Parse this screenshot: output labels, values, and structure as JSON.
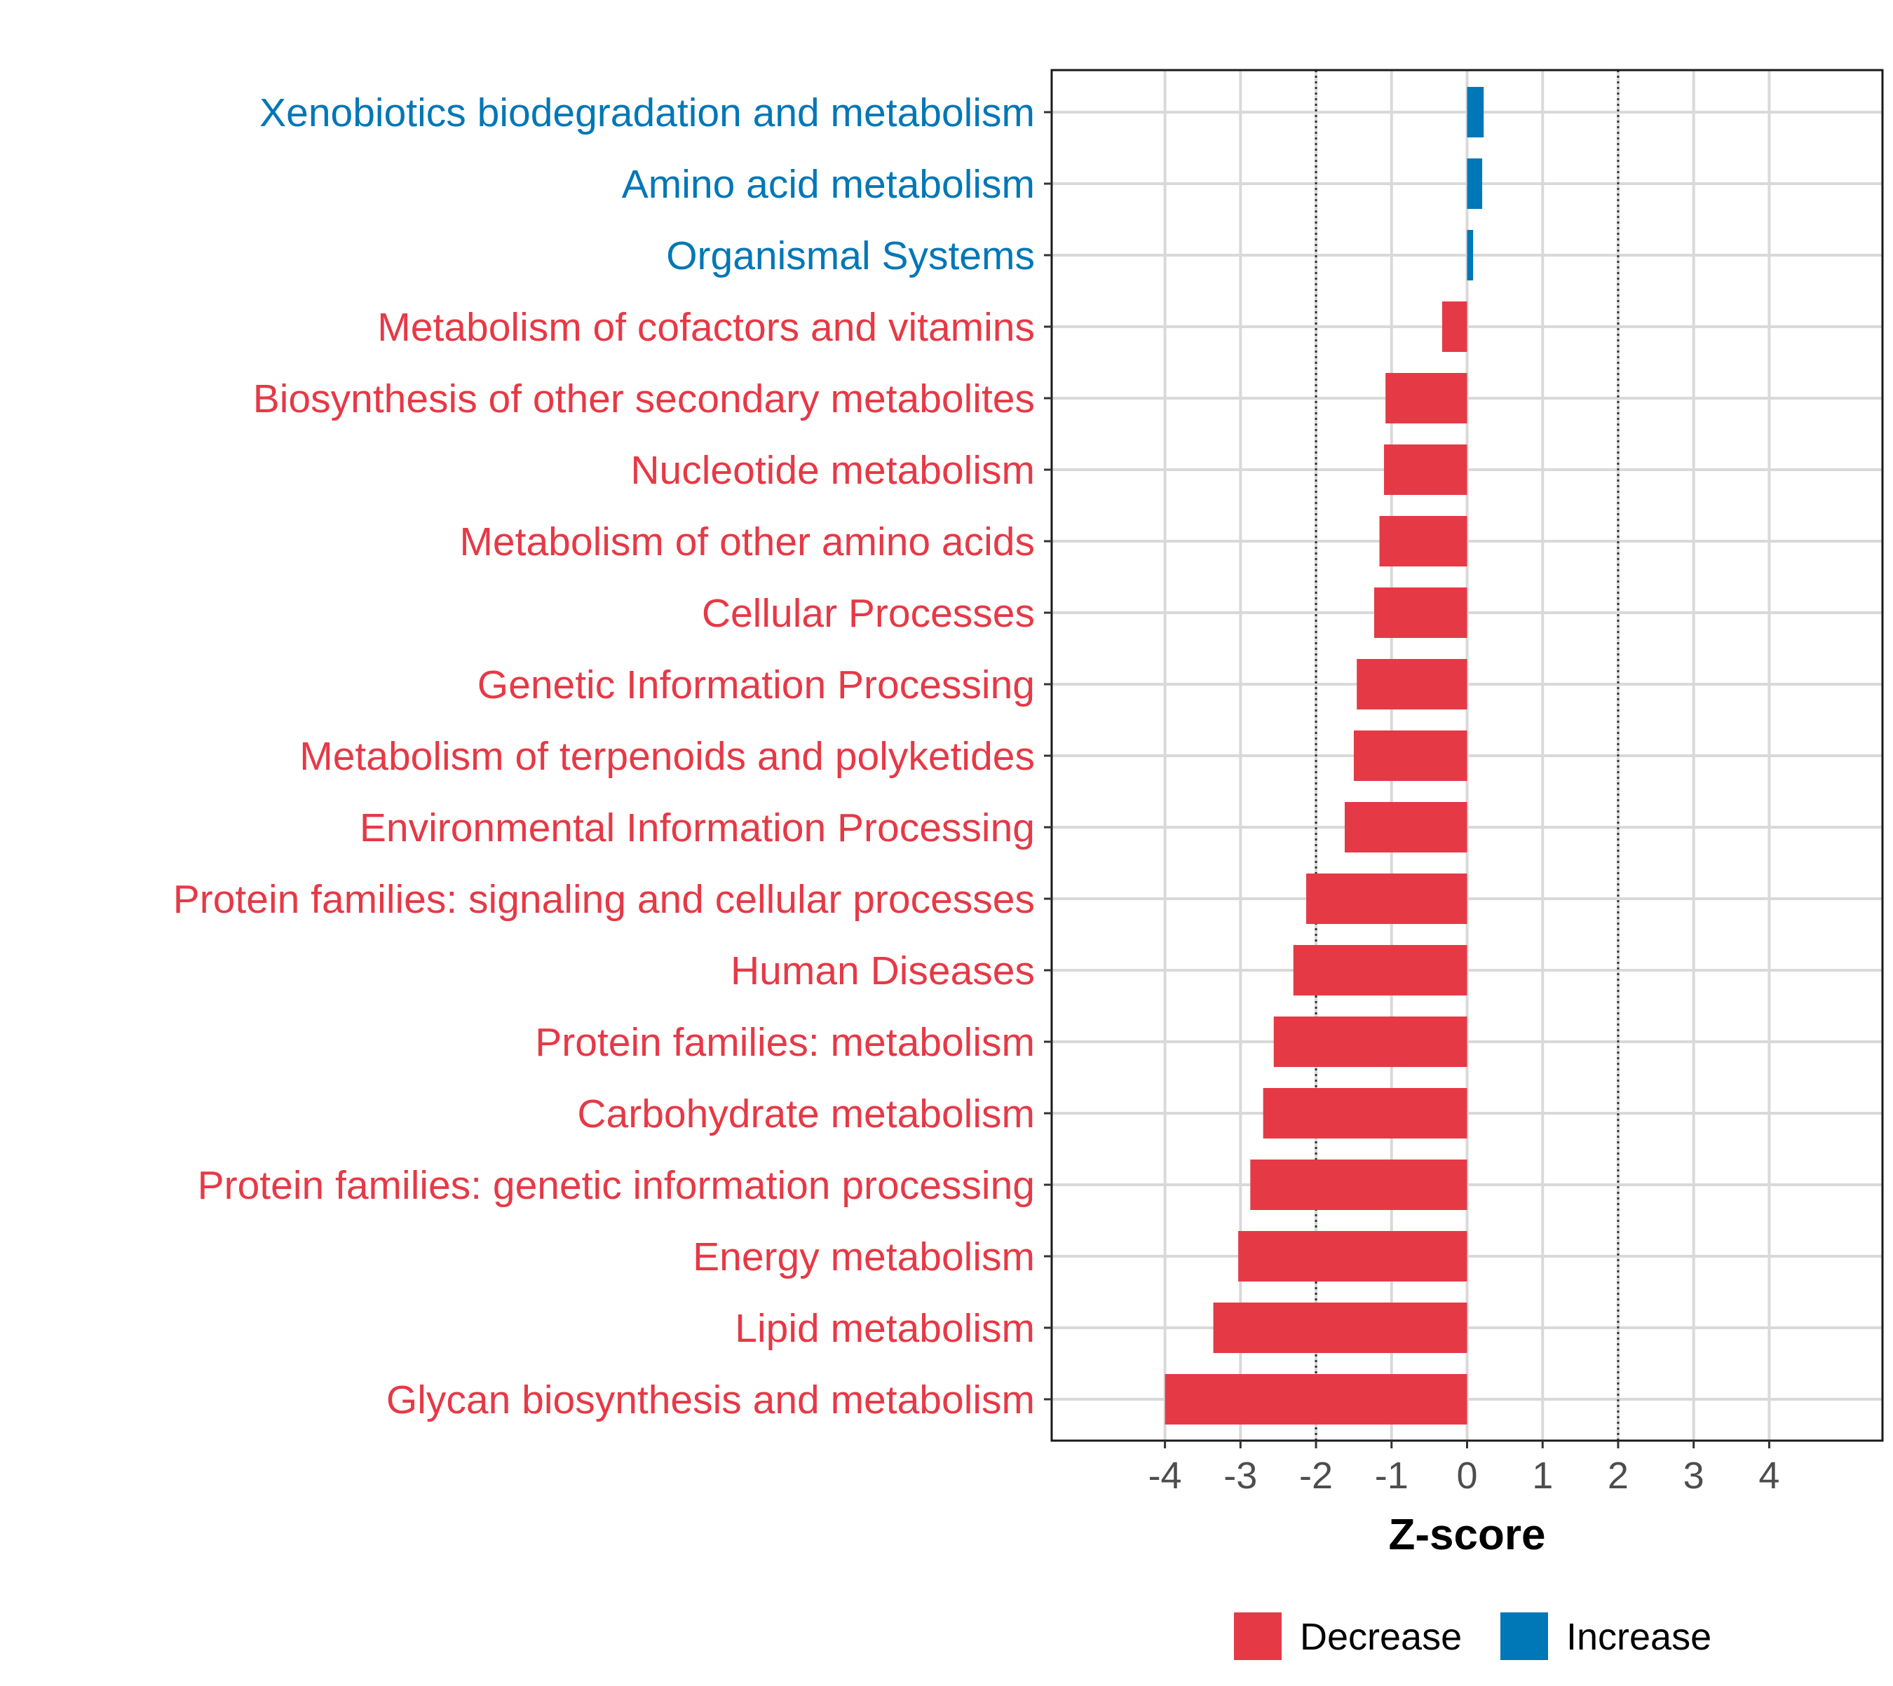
{
  "chart_data": {
    "type": "bar",
    "orientation": "horizontal",
    "categories": [
      "Xenobiotics biodegradation and metabolism",
      "Amino acid metabolism",
      "Organismal Systems",
      "Metabolism of cofactors and vitamins",
      "Biosynthesis of other secondary metabolites",
      "Nucleotide metabolism",
      "Metabolism of other amino acids",
      "Cellular Processes",
      "Genetic Information Processing",
      "Metabolism of terpenoids and polyketides",
      "Environmental Information Processing",
      "Protein families: signaling and cellular processes",
      "Human Diseases",
      "Protein families: metabolism",
      "Carbohydrate metabolism",
      "Protein families: genetic information processing",
      "Energy metabolism",
      "Lipid metabolism",
      "Glycan biosynthesis and metabolism"
    ],
    "values": [
      0.22,
      0.2,
      0.08,
      -0.33,
      -1.08,
      -1.1,
      -1.16,
      -1.23,
      -1.46,
      -1.5,
      -1.62,
      -2.13,
      -2.3,
      -2.56,
      -2.7,
      -2.87,
      -3.03,
      -3.36,
      -4.0
    ],
    "directions": [
      "Increase",
      "Increase",
      "Increase",
      "Decrease",
      "Decrease",
      "Decrease",
      "Decrease",
      "Decrease",
      "Decrease",
      "Decrease",
      "Decrease",
      "Decrease",
      "Decrease",
      "Decrease",
      "Decrease",
      "Decrease",
      "Decrease",
      "Decrease",
      "Decrease"
    ],
    "xlabel": "Z-score",
    "ylabel": "",
    "xlim": [
      -5.5,
      5.5
    ],
    "xticks": [
      -4,
      -3,
      -2,
      -1,
      0,
      1,
      2,
      3,
      4
    ],
    "xtick_labels": [
      "-4",
      "-3",
      "-2",
      "-1",
      "0",
      "1",
      "2",
      "3",
      "4"
    ],
    "threshold_lines": [
      -2,
      2
    ],
    "grid": true,
    "legend": {
      "position": "bottom",
      "entries": [
        {
          "label": "Decrease",
          "color": "#e63946"
        },
        {
          "label": "Increase",
          "color": "#0077b6"
        }
      ]
    },
    "colors": {
      "Decrease": "#e63946",
      "Increase": "#0077b6"
    }
  }
}
